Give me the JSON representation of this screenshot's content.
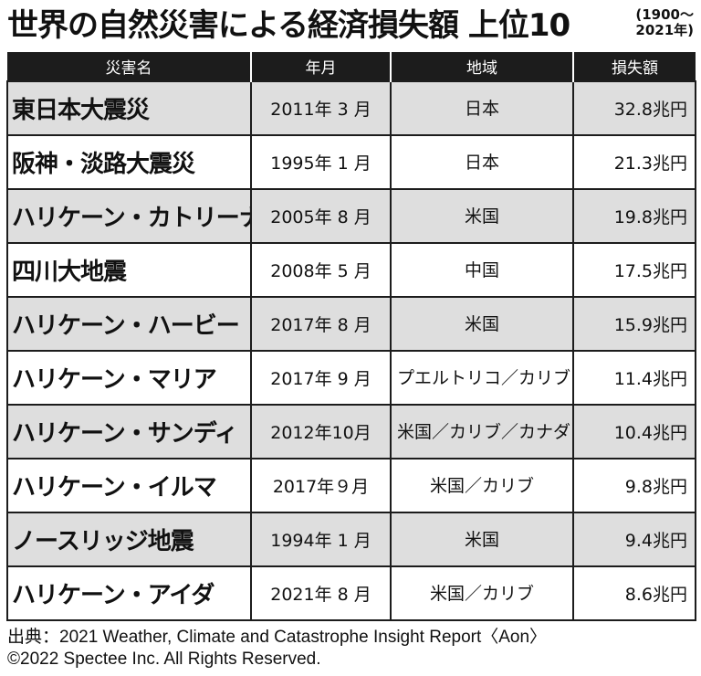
{
  "title": "世界の自然災害による経済損失額 上位10",
  "period_line1": "(1900〜",
  "period_line2": "2021年)",
  "headers": [
    "災害名",
    "年月",
    "地域",
    "損失額"
  ],
  "rows": [
    {
      "name": "東日本大震災",
      "date": "2011年 3 月",
      "region": "日本",
      "loss": "32.8兆円"
    },
    {
      "name": "阪神・淡路大震災",
      "date": "1995年 1 月",
      "region": "日本",
      "loss": "21.3兆円"
    },
    {
      "name": "ハリケーン・カトリーナ",
      "date": "2005年 8 月",
      "region": "米国",
      "loss": "19.8兆円"
    },
    {
      "name": "四川大地震",
      "date": "2008年 5 月",
      "region": "中国",
      "loss": "17.5兆円"
    },
    {
      "name": "ハリケーン・ハービー",
      "date": "2017年 8 月",
      "region": "米国",
      "loss": "15.9兆円"
    },
    {
      "name": "ハリケーン・マリア",
      "date": "2017年 9 月",
      "region": "プエルトリコ／カリブ",
      "loss": "11.4兆円"
    },
    {
      "name": "ハリケーン・サンディ",
      "date": "2012年10月",
      "region": "米国／カリブ／カナダ",
      "loss": "10.4兆円"
    },
    {
      "name": "ハリケーン・イルマ",
      "date": "2017年９月",
      "region": "米国／カリブ",
      "loss": "9.8兆円"
    },
    {
      "name": "ノースリッジ地震",
      "date": "1994年 1 月",
      "region": "米国",
      "loss": "9.4兆円"
    },
    {
      "name": "ハリケーン・アイダ",
      "date": "2021年 8 月",
      "region": "米国／カリブ",
      "loss": "8.6兆円"
    }
  ],
  "footer": {
    "source": "出典：2021 Weather, Climate and Catastrophe Insight Report〈Aon〉",
    "copyright": "©2022 Spectee Inc. All Rights Reserved."
  },
  "colors": {
    "header_bg": "#1c1c1c",
    "row_shade": "#dedede",
    "border": "#1c1c1c"
  }
}
